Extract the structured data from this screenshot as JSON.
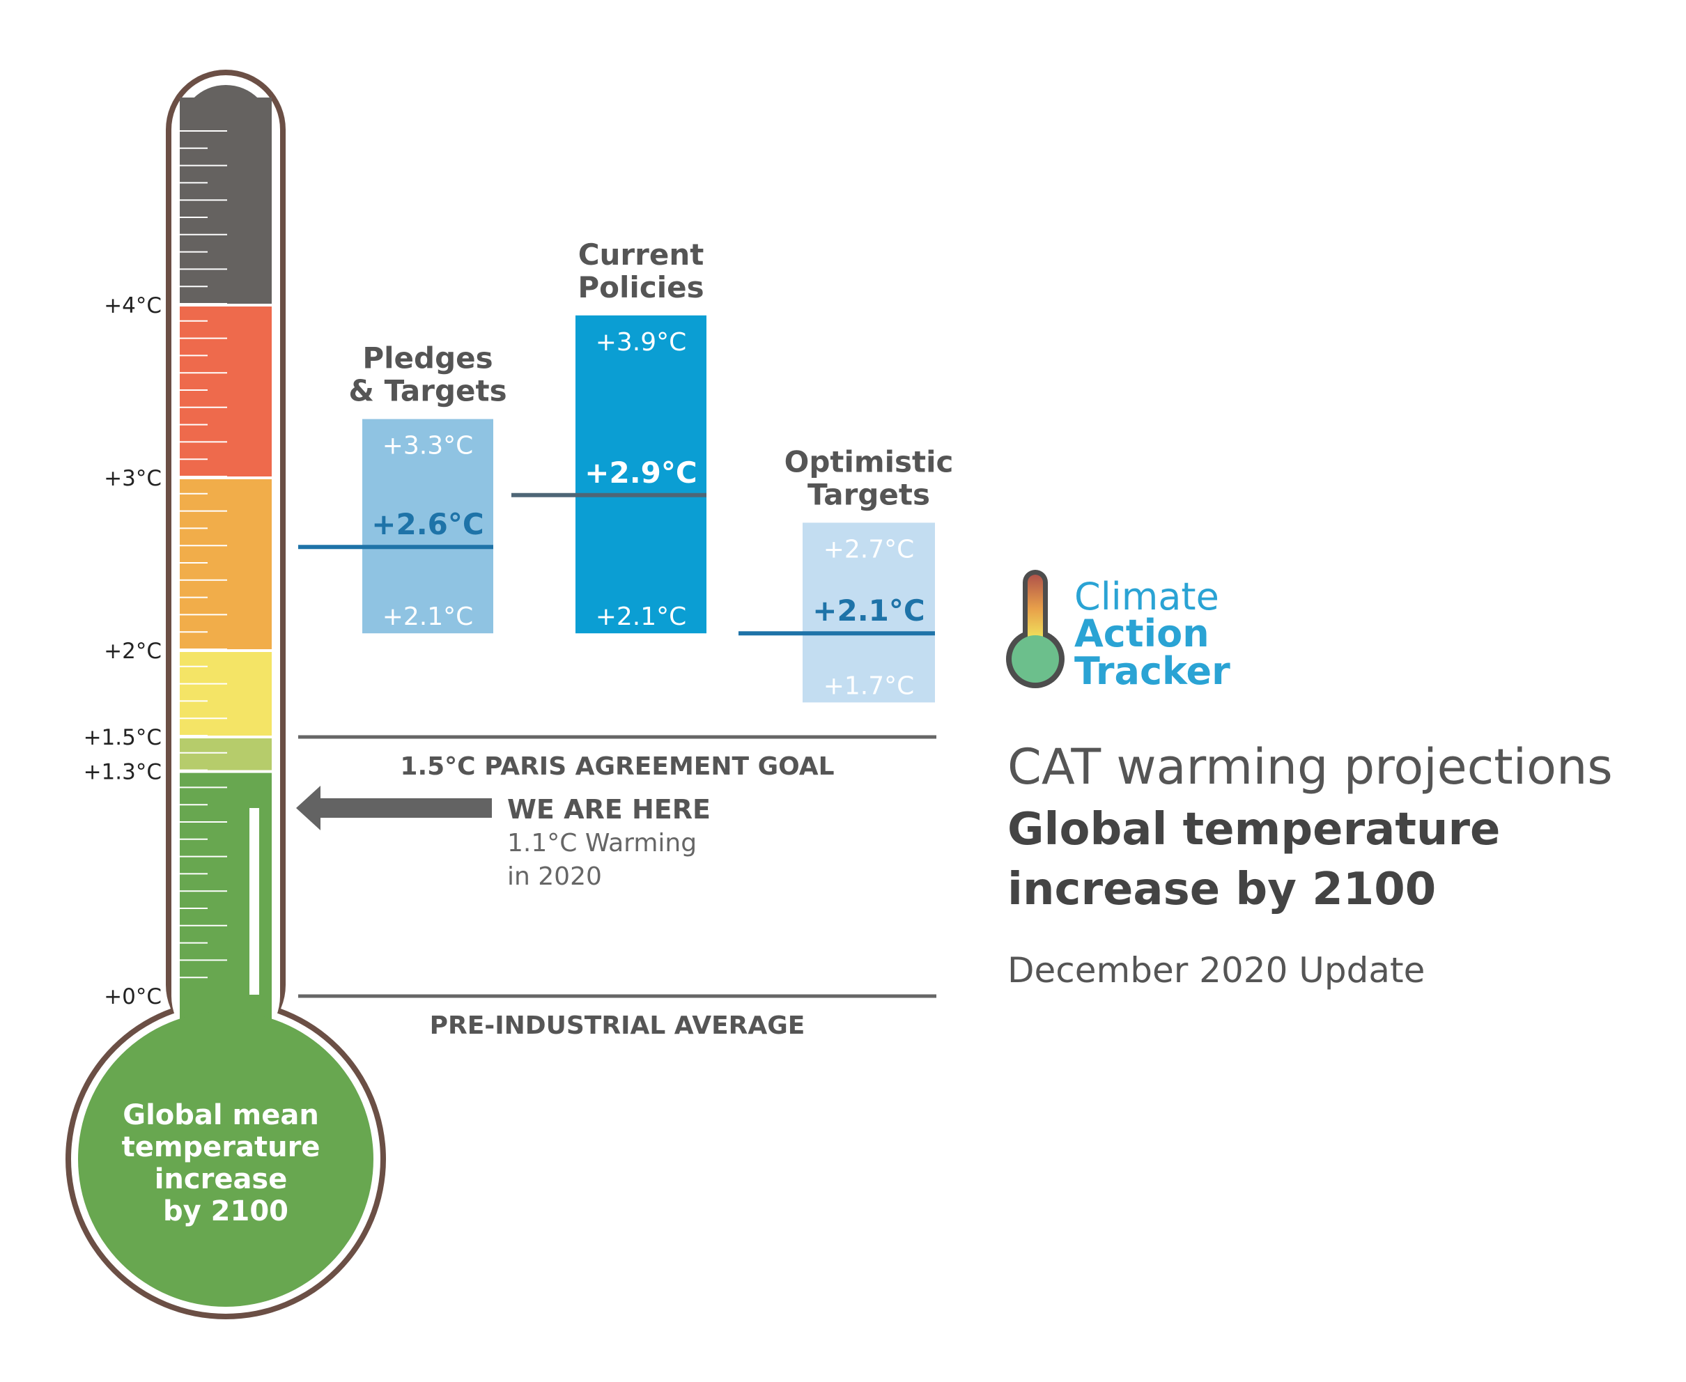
{
  "title": "CAT warming projections",
  "subtitle": "Global temperature increase by 2100",
  "date_label": "December 2020 Update",
  "logo": {
    "line1": "Climate",
    "line2": "Action",
    "line3": "Tracker"
  },
  "thermometer": {
    "bulb_label": [
      "Global mean",
      "temperature",
      "increase",
      "by 2100"
    ],
    "bands": [
      {
        "from": 0,
        "to": 1.3,
        "color": "#68a750"
      },
      {
        "from": 1.3,
        "to": 1.5,
        "color": "#b6cc6b"
      },
      {
        "from": 1.5,
        "to": 2.0,
        "color": "#f4e466"
      },
      {
        "from": 2.0,
        "to": 3.0,
        "color": "#f1ad4a"
      },
      {
        "from": 3.0,
        "to": 4.0,
        "color": "#ee6a4c"
      },
      {
        "from": 4.0,
        "to": 5.0,
        "color": "#656260"
      }
    ]
  },
  "axis_labels": [
    {
      "value": 4.0,
      "label": "+4°C"
    },
    {
      "value": 3.0,
      "label": "+3°C"
    },
    {
      "value": 2.0,
      "label": "+2°C"
    },
    {
      "value": 1.5,
      "label": "+1.5°C"
    },
    {
      "value": 1.3,
      "label": "+1.3°C"
    },
    {
      "value": 0.0,
      "label": "+0°C"
    }
  ],
  "reference_lines": [
    {
      "value": 1.5,
      "label": "1.5°C PARIS AGREEMENT GOAL"
    },
    {
      "value": 0.0,
      "label": "PRE-INDUSTRIAL AVERAGE"
    }
  ],
  "current": {
    "value": 1.1,
    "heading": "WE ARE HERE",
    "line1": "1.1°C Warming",
    "line2": "in 2020"
  },
  "chart_data": {
    "type": "bar",
    "title": "CAT warming projections",
    "subtitle": "Global temperature increase by 2100",
    "units": "°C",
    "categories": [
      "Pledges & Targets",
      "Current Policies",
      "Optimistic Targets"
    ],
    "bars": [
      {
        "name_lines": [
          "Pledges",
          "& Targets"
        ],
        "low": 2.1,
        "high": 3.3,
        "central": 2.6,
        "low_label": "+2.1°C",
        "high_label": "+3.3°C",
        "central_label": "+2.6°C",
        "fill": "#8fc3e2",
        "line_color": "#1e73a8",
        "central_text_color": "#1e73a8"
      },
      {
        "name_lines": [
          "Current",
          "Policies"
        ],
        "low": 2.1,
        "high": 3.9,
        "central": 2.9,
        "low_label": "+2.1°C",
        "high_label": "+3.9°C",
        "central_label": "+2.9°C",
        "fill": "#0b9ed3",
        "line_color": "#4e6676",
        "central_text_color": "#ffffff"
      },
      {
        "name_lines": [
          "Optimistic",
          "Targets"
        ],
        "low": 1.7,
        "high": 2.7,
        "central": 2.1,
        "low_label": "+1.7°C",
        "high_label": "+2.7°C",
        "central_label": "+2.1°C",
        "fill": "#c3ddf1",
        "line_color": "#1e73a8",
        "central_text_color": "#1e73a8"
      }
    ],
    "ylim": [
      0,
      5
    ]
  }
}
